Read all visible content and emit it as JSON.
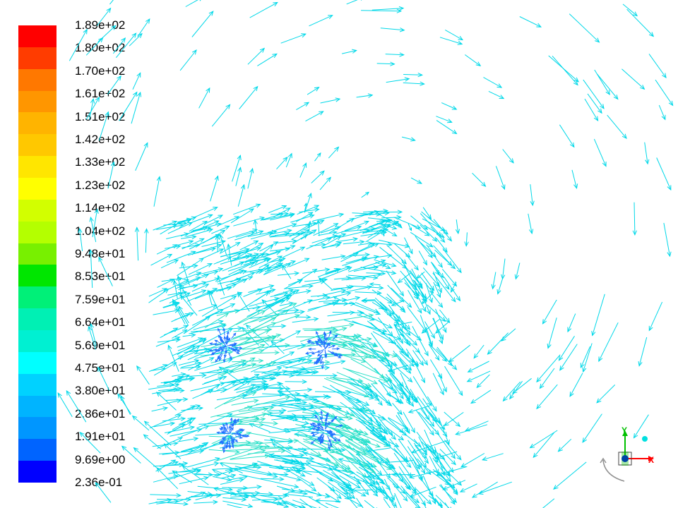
{
  "legend": {
    "labels": [
      "1.89e+02",
      "1.80e+02",
      "1.70e+02",
      "1.61e+02",
      "1.51e+02",
      "1.42e+02",
      "1.33e+02",
      "1.23e+02",
      "1.14e+02",
      "1.04e+02",
      "9.48e+01",
      "8.53e+01",
      "7.59e+01",
      "6.64e+01",
      "5.69e+01",
      "4.75e+01",
      "3.80e+01",
      "2.86e+01",
      "1.91e+01",
      "9.69e+00",
      "2.36e-01"
    ],
    "colors": [
      "#ff0000",
      "#ff3c00",
      "#ff7800",
      "#ff9600",
      "#ffb400",
      "#ffc800",
      "#ffe600",
      "#ffff00",
      "#d2ff00",
      "#b4ff00",
      "#78f000",
      "#00e600",
      "#00f078",
      "#00f0b4",
      "#00f0d2",
      "#00ffff",
      "#00d2ff",
      "#00b4ff",
      "#0096ff",
      "#0064ff",
      "#0000ff"
    ]
  },
  "field": {
    "arrow_color": "#00d8e8",
    "dense_color": "#28e0c8",
    "center_color": "#2070ff"
  },
  "axes": {
    "x_label": "X",
    "y_label": "Y",
    "x_color": "#ff0000",
    "y_color": "#00c000",
    "z_color": "#0000ff",
    "marker_color": "#00e0e0"
  }
}
